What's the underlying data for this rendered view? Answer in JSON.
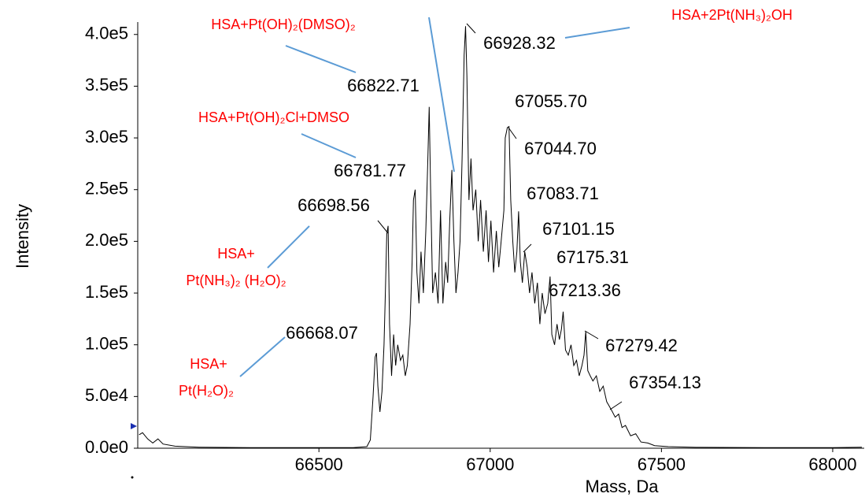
{
  "chart_data": {
    "type": "line",
    "x_label": "Mass, Da",
    "y_label": "Intensity",
    "xlim": [
      65971,
      68092
    ],
    "ylim": [
      0,
      412000
    ],
    "xticks": [
      66500,
      67000,
      67500,
      68000
    ],
    "yticks": [
      {
        "value": 0,
        "label": "0.0e0"
      },
      {
        "value": 50000,
        "label": "5.0e4"
      },
      {
        "value": 100000,
        "label": "1.0e5"
      },
      {
        "value": 150000,
        "label": "1.5e5"
      },
      {
        "value": 200000,
        "label": "2.0e5"
      },
      {
        "value": 250000,
        "label": "2.5e5"
      },
      {
        "value": 300000,
        "label": "3.0e5"
      },
      {
        "value": 350000,
        "label": "3.5e5"
      },
      {
        "value": 400000,
        "label": "4.0e5"
      }
    ],
    "series": [
      {
        "color": "#000000",
        "x": [
          65975,
          65985,
          66000,
          66015,
          66030,
          66045,
          66080,
          66150,
          66300,
          66600,
          66640,
          66650,
          66658,
          66664,
          66668,
          66672,
          66678,
          66684,
          66690,
          66694,
          66698,
          66702,
          66706,
          66712,
          66718,
          66724,
          66730,
          66738,
          66745,
          66752,
          66758,
          66766,
          66772,
          66776,
          66781,
          66786,
          66792,
          66798,
          66805,
          66812,
          66818,
          66822,
          66826,
          66832,
          66840,
          66848,
          66855,
          66862,
          66870,
          66876,
          66882,
          66888,
          66894,
          66900,
          66906,
          66912,
          66918,
          66924,
          66928,
          66932,
          66938,
          66944,
          66950,
          66958,
          66965,
          66972,
          66980,
          66988,
          66995,
          67002,
          67010,
          67018,
          67025,
          67032,
          67040,
          67044,
          67050,
          67055,
          67060,
          67066,
          67072,
          67078,
          67083,
          67088,
          67094,
          67101,
          67108,
          67115,
          67122,
          67130,
          67138,
          67145,
          67152,
          67160,
          67168,
          67175,
          67180,
          67188,
          67195,
          67202,
          67208,
          67213,
          67220,
          67228,
          67236,
          67244,
          67252,
          67260,
          67268,
          67274,
          67279,
          67285,
          67292,
          67300,
          67310,
          67320,
          67330,
          67340,
          67354,
          67365,
          67375,
          67385,
          67395,
          67410,
          67425,
          67440,
          67460,
          67480,
          67520,
          67600,
          67800,
          68000,
          68085
        ],
        "values": [
          13000,
          15000,
          9000,
          5000,
          9000,
          4000,
          2000,
          1000,
          500,
          500,
          1500,
          8000,
          50000,
          88000,
          92000,
          60000,
          35000,
          55000,
          100000,
          150000,
          207000,
          215000,
          120000,
          70000,
          110000,
          80000,
          100000,
          85000,
          90000,
          70000,
          80000,
          120000,
          180000,
          240000,
          250000,
          170000,
          140000,
          190000,
          150000,
          210000,
          280000,
          330000,
          250000,
          150000,
          170000,
          140000,
          230000,
          140000,
          180000,
          160000,
          220000,
          269000,
          200000,
          150000,
          170000,
          200000,
          280000,
          380000,
          408000,
          360000,
          240000,
          280000,
          230000,
          250000,
          200000,
          240000,
          190000,
          230000,
          180000,
          220000,
          170000,
          210000,
          175000,
          200000,
          230000,
          300000,
          310000,
          311000,
          240000,
          200000,
          170000,
          190000,
          229000,
          180000,
          160000,
          190000,
          175000,
          150000,
          170000,
          140000,
          160000,
          120000,
          150000,
          130000,
          140000,
          166000,
          110000,
          100000,
          120000,
          105000,
          115000,
          132000,
          95000,
          90000,
          100000,
          80000,
          85000,
          70000,
          80000,
          90000,
          113000,
          75000,
          70000,
          65000,
          70000,
          55000,
          60000,
          45000,
          37000,
          30000,
          33000,
          20000,
          22000,
          12000,
          14000,
          6000,
          5000,
          2500,
          1500,
          800,
          500,
          500,
          1000
        ]
      }
    ],
    "annotations": [
      {
        "lines": [
          "HSA+Pt(OH)₂(DMSO)₂"
        ]
      },
      {
        "lines": [
          "HSA+2Pt(NH₃)₂OH"
        ]
      },
      {
        "lines": [
          "HSA+Pt(OH)₂Cl+DMSO"
        ]
      },
      {
        "lines": [
          "HSA+",
          "Pt(NH₃)₂ (H₂O)₂"
        ]
      },
      {
        "lines": [
          "HSA+",
          "Pt(H₂O)₂"
        ]
      }
    ],
    "peak_labels": [
      "66928.32",
      "66822.71",
      "67055.70",
      "67044.70",
      "66781.77",
      "67083.71",
      "66698.56",
      "67101.15",
      "67175.31",
      "67213.36",
      "66668.07",
      "67279.42",
      "67354.13"
    ]
  }
}
